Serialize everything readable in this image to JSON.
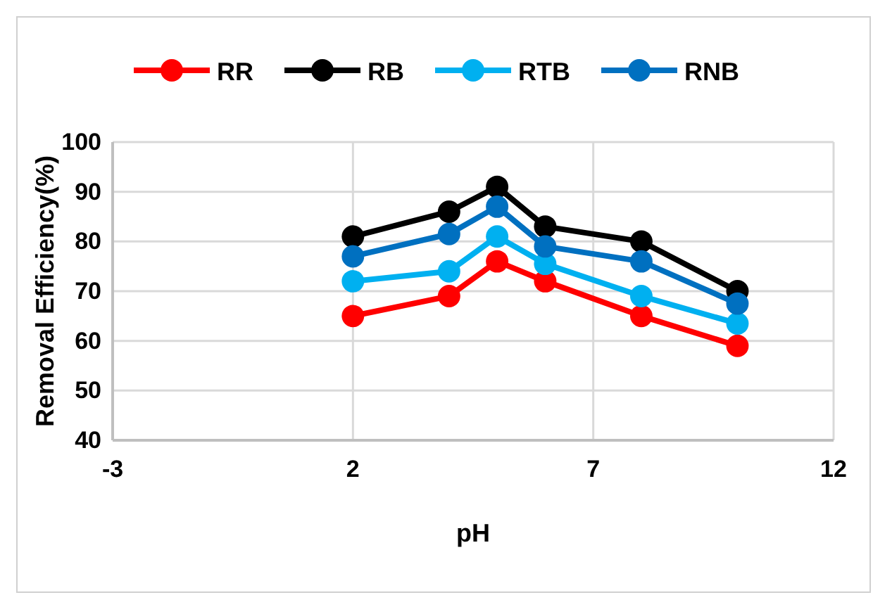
{
  "chart_data": {
    "type": "line",
    "xlabel": "pH",
    "ylabel": "Removal Efficiency(%)",
    "x": [
      2,
      4,
      5,
      6,
      8,
      10
    ],
    "series": [
      {
        "name": "RR",
        "color": "#ff0000",
        "values": [
          65,
          69,
          76,
          72,
          65,
          59
        ]
      },
      {
        "name": "RB",
        "color": "#000000",
        "values": [
          81,
          86,
          91,
          83,
          80,
          70
        ]
      },
      {
        "name": "RTB",
        "color": "#00b0f0",
        "values": [
          72,
          74,
          81,
          75.5,
          69,
          63.5
        ]
      },
      {
        "name": "RNB",
        "color": "#0070c0",
        "values": [
          77,
          81.5,
          87,
          79,
          76,
          67.5
        ]
      }
    ],
    "xlim": [
      -3,
      12
    ],
    "xticks": [
      -3,
      2,
      7,
      12
    ],
    "ylim": [
      40,
      100
    ],
    "yticks": [
      40,
      50,
      60,
      70,
      80,
      90,
      100
    ],
    "grid": true,
    "legend": "top",
    "marker": "circle",
    "line_style": "solid"
  }
}
